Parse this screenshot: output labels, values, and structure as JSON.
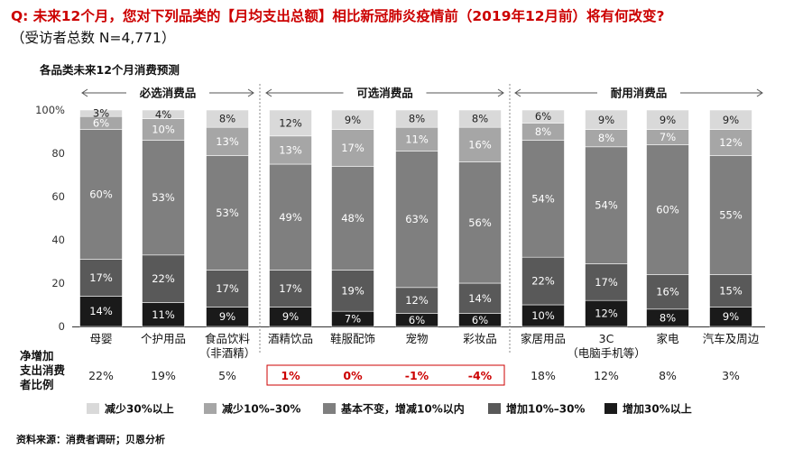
{
  "question": "Q: 未来12个月，您对下列品类的【月均支出总额】相比新冠肺炎疫情前（2019年12月前）将有何改变?",
  "respondents": "（受访者总数 N=4,771）",
  "subtitle": "各品类未来12个月消费预测",
  "source": "资料来源：消费者调研；贝恩分析",
  "net_label": "净增加支出消费者比例",
  "colors": {
    "decrease_30": "#d9d9d9",
    "decrease_10_30": "#a6a6a6",
    "unchanged": "#7f7f7f",
    "increase_10_30": "#595959",
    "increase_30": "#1a1a1a",
    "highlight_red": "#cc0000"
  },
  "chart_data": {
    "type": "stacked-bar",
    "ylim": [
      0,
      100
    ],
    "yticks": [
      "0",
      "20",
      "40",
      "60",
      "80",
      "100%"
    ],
    "groups": [
      {
        "label": "必选消费品",
        "categories": [
          "母婴",
          "个护用品",
          "食品饮料（非酒精）"
        ]
      },
      {
        "label": "可选消费品",
        "categories": [
          "酒精饮品",
          "鞋服配饰",
          "宠物",
          "彩妆品"
        ]
      },
      {
        "label": "耐用消费品",
        "categories": [
          "家居用品",
          "3C（电脑手机等）",
          "家电",
          "汽车及周边"
        ]
      }
    ],
    "categories": [
      "母婴",
      "个护用品",
      "食品饮料（非酒精）",
      "酒精饮品",
      "鞋服配饰",
      "宠物",
      "彩妆品",
      "家居用品",
      "3C（电脑手机等）",
      "家电",
      "汽车及周边"
    ],
    "series": [
      {
        "name": "增加30%以上",
        "values": [
          14,
          11,
          9,
          9,
          7,
          6,
          6,
          10,
          12,
          8,
          9
        ]
      },
      {
        "name": "增加10%–30%",
        "values": [
          17,
          22,
          17,
          17,
          19,
          12,
          14,
          22,
          17,
          16,
          15
        ]
      },
      {
        "name": "基本不变，增减10%以内",
        "values": [
          60,
          53,
          53,
          49,
          48,
          63,
          56,
          54,
          54,
          60,
          55
        ]
      },
      {
        "name": "减少10%–30%",
        "values": [
          6,
          10,
          13,
          13,
          17,
          11,
          16,
          8,
          8,
          7,
          12
        ]
      },
      {
        "name": "减少30%以上",
        "values": [
          3,
          4,
          8,
          12,
          9,
          8,
          8,
          6,
          9,
          9,
          9
        ]
      }
    ],
    "net_increase": [
      "22%",
      "19%",
      "5%",
      "1%",
      "0%",
      "-1%",
      "-4%",
      "18%",
      "12%",
      "8%",
      "3%"
    ],
    "highlighted_net": [
      "酒精饮品",
      "鞋服配饰",
      "宠物",
      "彩妆品"
    ],
    "legend_order": [
      "减少30%以上",
      "减少10%–30%",
      "基本不变，增减10%以内",
      "增加10%–30%",
      "增加30%以上"
    ]
  }
}
